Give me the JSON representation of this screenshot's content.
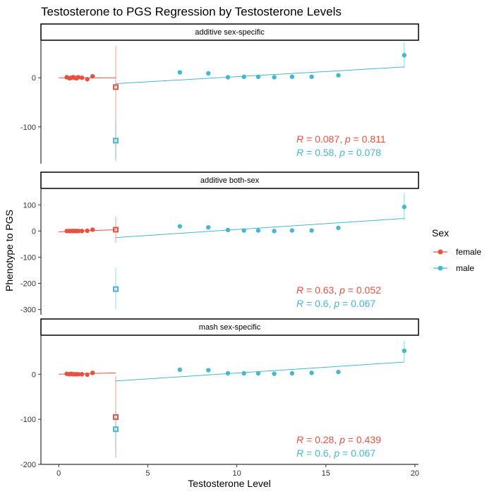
{
  "chart_data": {
    "type": "scatter",
    "title": "Testosterone to PGS Regression by Testosterone Levels",
    "xlabel": "Testosterone Level",
    "ylabel": "Phenotype to PGS",
    "xlim": [
      -1,
      20.2
    ],
    "x_ticks": [
      0,
      5,
      10,
      15,
      20
    ],
    "colors": {
      "female": "#E8513F",
      "male": "#45B8D0"
    },
    "legend": {
      "title": "Sex",
      "position": "right",
      "entries": [
        "female",
        "male"
      ]
    },
    "panels": [
      {
        "strip": "additive sex-specific",
        "ylim": [
          -175,
          75
        ],
        "y_ticks": [
          -100,
          0
        ],
        "series": [
          {
            "name": "female",
            "points": [
              {
                "x": 0.45,
                "y": 1
              },
              {
                "x": 0.6,
                "y": -1
              },
              {
                "x": 0.7,
                "y": 0
              },
              {
                "x": 0.8,
                "y": 1
              },
              {
                "x": 0.9,
                "y": 0
              },
              {
                "x": 1.0,
                "y": -1
              },
              {
                "x": 1.1,
                "y": 1
              },
              {
                "x": 1.3,
                "y": 0
              },
              {
                "x": 1.6,
                "y": -3
              },
              {
                "x": 1.9,
                "y": 3
              }
            ],
            "open_point": {
              "x": 3.2,
              "y": -19,
              "lo": -165,
              "hi": 65
            },
            "fit": {
              "x0": 0,
              "x1": 3.2,
              "y0": 0,
              "y1": 0
            }
          },
          {
            "name": "male",
            "points": [
              {
                "x": 6.8,
                "y": 11
              },
              {
                "x": 8.4,
                "y": 9
              },
              {
                "x": 9.5,
                "y": 1
              },
              {
                "x": 10.4,
                "y": 2
              },
              {
                "x": 11.2,
                "y": 2
              },
              {
                "x": 12.1,
                "y": 1
              },
              {
                "x": 13.1,
                "y": 2
              },
              {
                "x": 14.2,
                "y": 2
              },
              {
                "x": 15.7,
                "y": 5
              },
              {
                "x": 19.4,
                "y": 46,
                "lo": 20,
                "hi": 72
              }
            ],
            "open_point": {
              "x": 3.2,
              "y": -128,
              "lo": -170,
              "hi": -88
            },
            "fit": {
              "x0": 3.2,
              "x1": 19.4,
              "y0": -12,
              "y1": 22
            }
          }
        ],
        "annotations": [
          {
            "series": "female",
            "text": "R = 0.087, p = 0.811"
          },
          {
            "series": "male",
            "text": "R = 0.58, p = 0.078"
          }
        ]
      },
      {
        "strip": "additive both-sex",
        "ylim": [
          -320,
          160
        ],
        "y_ticks": [
          -300,
          -200,
          -100,
          0,
          100
        ],
        "series": [
          {
            "name": "female",
            "points": [
              {
                "x": 0.45,
                "y": 0
              },
              {
                "x": 0.6,
                "y": 0
              },
              {
                "x": 0.7,
                "y": 0
              },
              {
                "x": 0.8,
                "y": 0
              },
              {
                "x": 0.9,
                "y": 0
              },
              {
                "x": 1.0,
                "y": 0
              },
              {
                "x": 1.1,
                "y": 0
              },
              {
                "x": 1.3,
                "y": 0
              },
              {
                "x": 1.6,
                "y": 1
              },
              {
                "x": 1.9,
                "y": 5
              }
            ],
            "open_point": {
              "x": 3.2,
              "y": 5,
              "lo": -45,
              "hi": 55
            },
            "fit": {
              "x0": 0,
              "x1": 3.2,
              "y0": -3,
              "y1": 5
            }
          },
          {
            "name": "male",
            "points": [
              {
                "x": 6.8,
                "y": 18
              },
              {
                "x": 8.4,
                "y": 14
              },
              {
                "x": 9.5,
                "y": 4
              },
              {
                "x": 10.4,
                "y": 2
              },
              {
                "x": 11.2,
                "y": 2
              },
              {
                "x": 12.1,
                "y": 0
              },
              {
                "x": 13.1,
                "y": 2
              },
              {
                "x": 14.2,
                "y": 2
              },
              {
                "x": 15.7,
                "y": 12
              },
              {
                "x": 19.4,
                "y": 92,
                "lo": 40,
                "hi": 145
              }
            ],
            "open_point": {
              "x": 3.2,
              "y": -222,
              "lo": -300,
              "hi": -140
            },
            "fit": {
              "x0": 3.2,
              "x1": 19.4,
              "y0": -25,
              "y1": 48
            }
          }
        ],
        "annotations": [
          {
            "series": "female",
            "text": "R = 0.63, p = 0.052"
          },
          {
            "series": "male",
            "text": "R = 0.6, p = 0.067"
          }
        ]
      },
      {
        "strip": "mash sex-specific",
        "ylim": [
          -200,
          85
        ],
        "y_ticks": [
          -200,
          -100,
          0
        ],
        "series": [
          {
            "name": "female",
            "points": [
              {
                "x": 0.45,
                "y": 1
              },
              {
                "x": 0.6,
                "y": 0
              },
              {
                "x": 0.7,
                "y": 1
              },
              {
                "x": 0.8,
                "y": 0
              },
              {
                "x": 0.9,
                "y": 0
              },
              {
                "x": 1.0,
                "y": 0
              },
              {
                "x": 1.1,
                "y": 0
              },
              {
                "x": 1.3,
                "y": 0
              },
              {
                "x": 1.6,
                "y": -1
              },
              {
                "x": 1.9,
                "y": 3
              }
            ],
            "open_point": {
              "x": 3.2,
              "y": -95,
              "lo": -185,
              "hi": -5
            },
            "fit": {
              "x0": 0,
              "x1": 3.2,
              "y0": 0,
              "y1": 3
            }
          },
          {
            "name": "male",
            "points": [
              {
                "x": 6.8,
                "y": 10
              },
              {
                "x": 8.4,
                "y": 9
              },
              {
                "x": 9.5,
                "y": 2
              },
              {
                "x": 10.4,
                "y": 2
              },
              {
                "x": 11.2,
                "y": 2
              },
              {
                "x": 12.1,
                "y": 1
              },
              {
                "x": 13.1,
                "y": 2
              },
              {
                "x": 14.2,
                "y": 3
              },
              {
                "x": 15.7,
                "y": 5
              },
              {
                "x": 19.4,
                "y": 52,
                "lo": 28,
                "hi": 75
              }
            ],
            "open_point": {
              "x": 3.2,
              "y": -122,
              "lo": -170,
              "hi": -80
            },
            "fit": {
              "x0": 3.2,
              "x1": 19.4,
              "y0": -15,
              "y1": 27
            }
          }
        ],
        "annotations": [
          {
            "series": "female",
            "text": "R = 0.28, p = 0.439"
          },
          {
            "series": "male",
            "text": "R = 0.6, p = 0.067"
          }
        ]
      }
    ]
  }
}
